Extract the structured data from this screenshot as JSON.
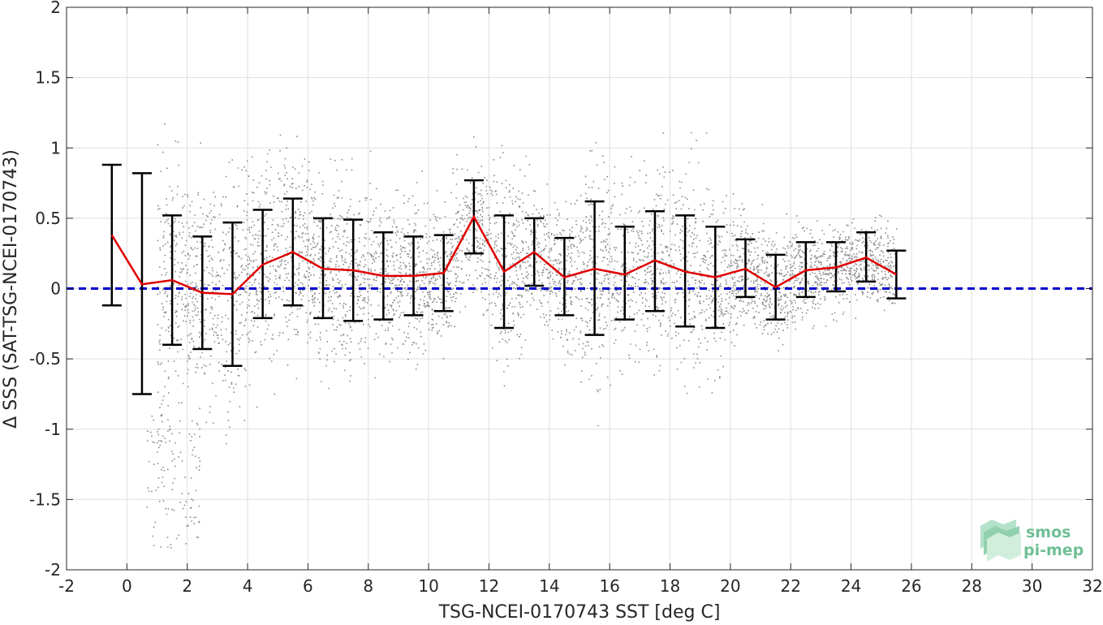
{
  "chart_data": {
    "type": "scatter",
    "title": "",
    "xlabel": "TSG-NCEI-0170743 SST [deg C]",
    "ylabel": "Δ SSS (SAT-TSG-NCEI-0170743)",
    "xlim": [
      -2,
      32
    ],
    "ylim": [
      -2,
      2
    ],
    "xticks": [
      -2,
      0,
      2,
      4,
      6,
      8,
      10,
      12,
      14,
      16,
      18,
      20,
      22,
      24,
      26,
      28,
      30,
      32
    ],
    "xtick_labels": [
      "-2",
      "0",
      "2",
      "4",
      "6",
      "8",
      "10",
      "12",
      "14",
      "16",
      "18",
      "20",
      "22",
      "24",
      "26",
      "28",
      "30",
      "32"
    ],
    "yticks": [
      2,
      1.5,
      1,
      0.5,
      0,
      -0.5,
      -1,
      -1.5,
      -2
    ],
    "ytick_labels": [
      "2",
      "1.5",
      "1",
      "0.5",
      "0",
      "-0.5",
      "-1",
      "-1.5",
      "-2"
    ],
    "grid": true,
    "reference_line": {
      "y": 0,
      "style": "dashed",
      "color": "#0000cc"
    },
    "scatter_color": "#808080",
    "mean_color": "#e00000",
    "errorbar_color": "#000000",
    "binned": {
      "x": [
        -0.5,
        0.5,
        1.5,
        2.5,
        3.5,
        4.5,
        5.5,
        6.5,
        7.5,
        8.5,
        9.5,
        10.5,
        11.5,
        12.5,
        13.5,
        14.5,
        15.5,
        16.5,
        17.5,
        18.5,
        19.5,
        20.5,
        21.5,
        22.5,
        23.5,
        24.5,
        25.5
      ],
      "mean": [
        0.38,
        0.03,
        0.06,
        -0.03,
        -0.04,
        0.17,
        0.26,
        0.14,
        0.13,
        0.09,
        0.09,
        0.11,
        0.51,
        0.12,
        0.26,
        0.08,
        0.14,
        0.1,
        0.2,
        0.12,
        0.08,
        0.14,
        0.01,
        0.13,
        0.15,
        0.22,
        0.1
      ],
      "upper": [
        0.88,
        0.82,
        0.52,
        0.37,
        0.47,
        0.56,
        0.64,
        0.5,
        0.49,
        0.4,
        0.37,
        0.38,
        0.77,
        0.52,
        0.5,
        0.36,
        0.62,
        0.44,
        0.55,
        0.52,
        0.44,
        0.35,
        0.24,
        0.33,
        0.33,
        0.4,
        0.27
      ],
      "lower": [
        -0.12,
        -0.75,
        -0.4,
        -0.43,
        -0.55,
        -0.21,
        -0.12,
        -0.21,
        -0.23,
        -0.22,
        -0.19,
        -0.16,
        0.25,
        -0.28,
        0.02,
        -0.19,
        -0.33,
        -0.22,
        -0.16,
        -0.27,
        -0.28,
        -0.06,
        -0.22,
        -0.06,
        -0.02,
        0.05,
        -0.07
      ]
    }
  },
  "logo": {
    "line1": "smos",
    "line2": "pi-mep",
    "color": "#6fbf95"
  }
}
